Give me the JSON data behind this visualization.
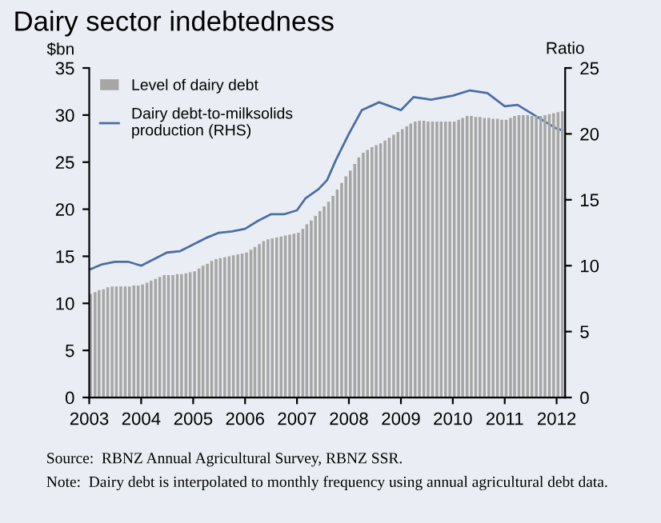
{
  "chart_data": {
    "type": "bar",
    "title": "Dairy sector indebtedness",
    "ylabel": "$bn",
    "y2label": "Ratio",
    "x": [
      "2003-01",
      "2003-02",
      "2003-03",
      "2003-04",
      "2003-05",
      "2003-06",
      "2003-07",
      "2003-08",
      "2003-09",
      "2003-10",
      "2003-11",
      "2003-12",
      "2004-01",
      "2004-02",
      "2004-03",
      "2004-04",
      "2004-05",
      "2004-06",
      "2004-07",
      "2004-08",
      "2004-09",
      "2004-10",
      "2004-11",
      "2004-12",
      "2005-01",
      "2005-02",
      "2005-03",
      "2005-04",
      "2005-05",
      "2005-06",
      "2005-07",
      "2005-08",
      "2005-09",
      "2005-10",
      "2005-11",
      "2005-12",
      "2006-01",
      "2006-02",
      "2006-03",
      "2006-04",
      "2006-05",
      "2006-06",
      "2006-07",
      "2006-08",
      "2006-09",
      "2006-10",
      "2006-11",
      "2006-12",
      "2007-01",
      "2007-02",
      "2007-03",
      "2007-04",
      "2007-05",
      "2007-06",
      "2007-07",
      "2007-08",
      "2007-09",
      "2007-10",
      "2007-11",
      "2007-12",
      "2008-01",
      "2008-02",
      "2008-03",
      "2008-04",
      "2008-05",
      "2008-06",
      "2008-07",
      "2008-08",
      "2008-09",
      "2008-10",
      "2008-11",
      "2008-12",
      "2009-01",
      "2009-02",
      "2009-03",
      "2009-04",
      "2009-05",
      "2009-06",
      "2009-07",
      "2009-08",
      "2009-09",
      "2009-10",
      "2009-11",
      "2009-12",
      "2010-01",
      "2010-02",
      "2010-03",
      "2010-04",
      "2010-05",
      "2010-06",
      "2010-07",
      "2010-08",
      "2010-09",
      "2010-10",
      "2010-11",
      "2010-12",
      "2011-01",
      "2011-02",
      "2011-03",
      "2011-04",
      "2011-05",
      "2011-06",
      "2011-07",
      "2011-08",
      "2011-09",
      "2011-10",
      "2011-11",
      "2011-12",
      "2012-01",
      "2012-02"
    ],
    "series": [
      {
        "name": "Level of dairy debt",
        "color": "#a6a6a6",
        "values": [
          11.0,
          11.2,
          11.4,
          11.5,
          11.7,
          11.8,
          11.8,
          11.8,
          11.8,
          11.8,
          11.9,
          11.9,
          12.0,
          12.2,
          12.4,
          12.6,
          12.8,
          13.0,
          13.0,
          13.0,
          13.1,
          13.1,
          13.2,
          13.3,
          13.4,
          13.7,
          14.0,
          14.2,
          14.5,
          14.7,
          14.8,
          14.9,
          15.0,
          15.1,
          15.2,
          15.3,
          15.4,
          15.7,
          16.0,
          16.3,
          16.6,
          16.8,
          16.9,
          17.0,
          17.1,
          17.2,
          17.3,
          17.4,
          17.5,
          17.9,
          18.4,
          18.8,
          19.3,
          19.8,
          20.3,
          20.8,
          21.4,
          22.1,
          22.8,
          23.5,
          24.1,
          24.8,
          25.5,
          26.0,
          26.3,
          26.6,
          26.8,
          27.0,
          27.3,
          27.6,
          27.9,
          28.2,
          28.5,
          28.8,
          29.1,
          29.3,
          29.4,
          29.4,
          29.3,
          29.3,
          29.3,
          29.3,
          29.3,
          29.3,
          29.3,
          29.5,
          29.7,
          29.9,
          29.9,
          29.8,
          29.8,
          29.7,
          29.7,
          29.6,
          29.6,
          29.5,
          29.5,
          29.7,
          29.9,
          30.0,
          30.0,
          30.0,
          29.9,
          29.9,
          29.9,
          30.0,
          30.1,
          30.2,
          30.3,
          30.4
        ]
      },
      {
        "name": "Dairy debt-to-milksolids production (RHS)",
        "type": "line",
        "axis": "y2",
        "color": "#4a6fa5",
        "x": [
          "2003-01",
          "2003-04",
          "2003-07",
          "2003-10",
          "2004-01",
          "2004-04",
          "2004-07",
          "2004-10",
          "2005-01",
          "2005-04",
          "2005-07",
          "2005-10",
          "2006-01",
          "2006-04",
          "2006-07",
          "2006-10",
          "2007-01",
          "2007-03",
          "2007-06",
          "2007-08",
          "2007-10",
          "2008-01",
          "2008-04",
          "2008-08",
          "2009-01",
          "2009-04",
          "2009-08",
          "2010-01",
          "2010-05",
          "2010-09",
          "2011-01",
          "2011-04",
          "2011-08",
          "2012-01",
          "2012-02"
        ],
        "values": [
          9.7,
          10.1,
          10.3,
          10.3,
          10.0,
          10.5,
          11.0,
          11.1,
          11.6,
          12.1,
          12.5,
          12.6,
          12.8,
          13.4,
          13.9,
          13.9,
          14.2,
          15.1,
          15.8,
          16.5,
          18.0,
          20.0,
          21.8,
          22.4,
          21.8,
          22.8,
          22.6,
          22.9,
          23.3,
          23.1,
          22.1,
          22.2,
          21.4,
          20.4,
          20.3
        ]
      }
    ],
    "xlim": [
      "2003-01",
      "2012-03"
    ],
    "xticks": [
      "2003",
      "2004",
      "2005",
      "2006",
      "2007",
      "2008",
      "2009",
      "2010",
      "2011",
      "2012"
    ],
    "ylim": [
      0,
      35
    ],
    "yticks": [
      0,
      5,
      10,
      15,
      20,
      25,
      30,
      35
    ],
    "y2lim": [
      0,
      25
    ],
    "y2ticks": [
      0,
      5,
      10,
      15,
      20,
      25
    ],
    "legend": "top left",
    "grid": false,
    "annotations": [
      "Source:  RBNZ Annual Agricultural Survey, RBNZ SSR.",
      "Note:  Dairy debt is interpolated to monthly frequency using annual agricultural debt data."
    ]
  }
}
